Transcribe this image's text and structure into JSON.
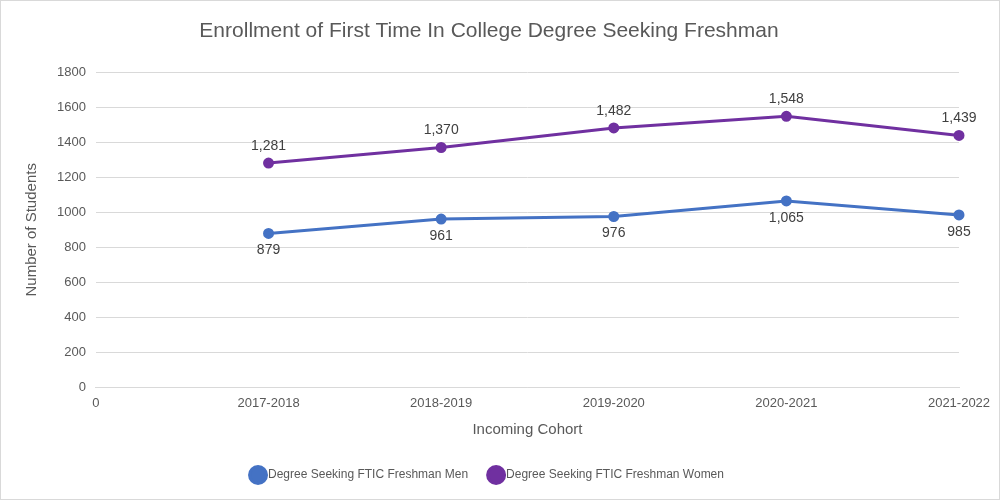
{
  "chart_data": {
    "type": "line",
    "title": "Enrollment of First Time In College Degree Seeking Freshman",
    "x_label": "Incoming Cohort",
    "y_label": "Number of Students",
    "categories": [
      "0",
      "2017-2018",
      "2018-2019",
      "2019-2020",
      "2020-2021",
      "2021-2022"
    ],
    "series": [
      {
        "name": "Degree Seeking FTIC Freshman Men",
        "color": "#4472c4",
        "marker": "circle",
        "values": [
          null,
          879,
          961,
          976,
          1065,
          985
        ],
        "value_labels": [
          null,
          "879",
          "961",
          "976",
          "1,065",
          "985"
        ]
      },
      {
        "name": "Degree Seeking FTIC Freshman Women",
        "color": "#7030a0",
        "marker": "circle",
        "values": [
          null,
          1281,
          1370,
          1482,
          1548,
          1439
        ],
        "value_labels": [
          null,
          "1,281",
          "1,370",
          "1,482",
          "1,548",
          "1,439"
        ]
      }
    ],
    "ylim": [
      0,
      1800
    ],
    "yticks": [
      0,
      200,
      400,
      600,
      800,
      1000,
      1200,
      1400,
      1600,
      1800
    ],
    "grid": true,
    "legend": "bottom",
    "data_labels": true
  }
}
